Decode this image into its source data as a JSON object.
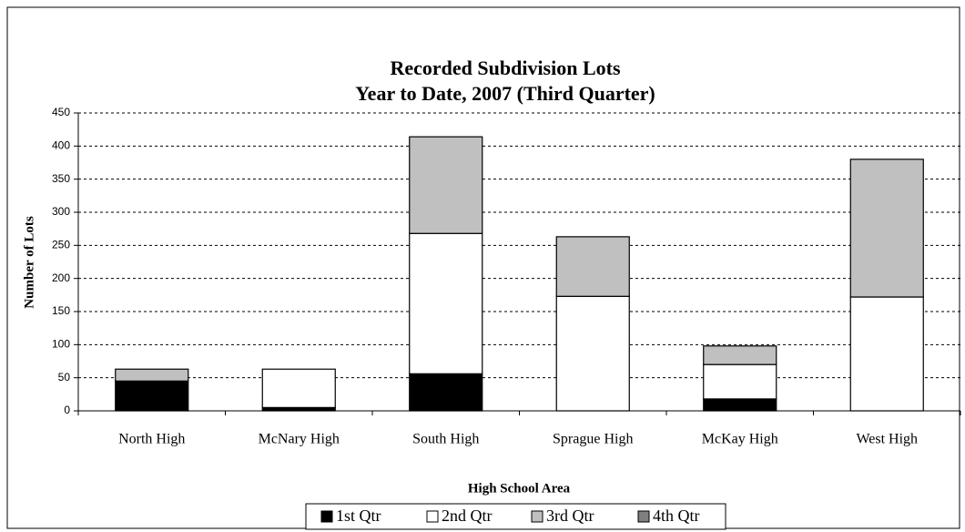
{
  "chart_data": {
    "type": "stacked_bar",
    "title": [
      "Recorded Subdivision Lots",
      "Year to Date, 2007 (Third Quarter)"
    ],
    "x_label": "High School Area",
    "y_label": "Number of Lots",
    "categories": [
      "North High",
      "McNary High",
      "South High",
      "Sprague High",
      "McKay High",
      "West High"
    ],
    "series": [
      {
        "name": "1st Qtr",
        "color": "#000000",
        "values": [
          45,
          5,
          56,
          0,
          18,
          0
        ]
      },
      {
        "name": "2nd Qtr",
        "color": "#ffffff",
        "values": [
          0,
          58,
          212,
          173,
          52,
          172
        ]
      },
      {
        "name": "3rd Qtr",
        "color": "#c0c0c0",
        "values": [
          18,
          0,
          146,
          90,
          28,
          208
        ]
      },
      {
        "name": "4th Qtr",
        "color": "#808080",
        "values": [
          0,
          0,
          0,
          0,
          0,
          0
        ]
      }
    ],
    "ylim": [
      0,
      450
    ],
    "yticks": [
      0,
      50,
      100,
      150,
      200,
      250,
      300,
      350,
      400,
      450
    ],
    "grid": true
  }
}
